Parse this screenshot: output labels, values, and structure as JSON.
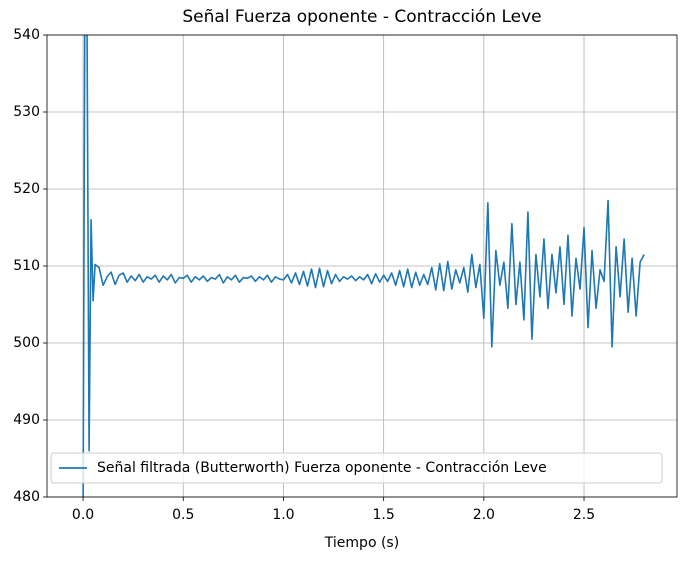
{
  "chart_data": {
    "type": "line",
    "title": "Señal Fuerza oponente - Contracción Leve",
    "x_label": "Tiempo (s)",
    "xlim": [
      -0.18,
      2.964
    ],
    "xticks": [
      {
        "value": 0,
        "label": "0.0"
      },
      0.5,
      {
        "value": 1,
        "label": "1.0"
      },
      1.5,
      {
        "value": 2,
        "label": "2.0"
      },
      2.5
    ],
    "ylim": [
      480,
      540
    ],
    "yticks": [
      480,
      490,
      500,
      510,
      520,
      530,
      540
    ],
    "grid": true,
    "legend": "lower left",
    "x": [
      0,
      0.01,
      0.02,
      0.03,
      0.04,
      0.05,
      0.06,
      0.08,
      0.1,
      0.12,
      0.14,
      0.16,
      0.18,
      0.2,
      0.22,
      0.24,
      0.26,
      0.28,
      0.3,
      0.32,
      0.34,
      0.36,
      0.38,
      0.4,
      0.42,
      0.44,
      0.46,
      0.48,
      0.5,
      0.52,
      0.54,
      0.56,
      0.58,
      0.6,
      0.62,
      0.64,
      0.66,
      0.68,
      0.7,
      0.72,
      0.74,
      0.76,
      0.78,
      0.8,
      0.82,
      0.84,
      0.86,
      0.88,
      0.9,
      0.92,
      0.94,
      0.96,
      0.98,
      1.0,
      1.02,
      1.04,
      1.06,
      1.08,
      1.1,
      1.12,
      1.14,
      1.16,
      1.18,
      1.2,
      1.22,
      1.24,
      1.26,
      1.28,
      1.3,
      1.32,
      1.34,
      1.36,
      1.38,
      1.4,
      1.42,
      1.44,
      1.46,
      1.48,
      1.5,
      1.52,
      1.54,
      1.56,
      1.58,
      1.6,
      1.62,
      1.64,
      1.66,
      1.68,
      1.7,
      1.72,
      1.74,
      1.76,
      1.78,
      1.8,
      1.82,
      1.84,
      1.86,
      1.88,
      1.9,
      1.92,
      1.94,
      1.96,
      1.98,
      2.0,
      2.02,
      2.04,
      2.06,
      2.08,
      2.1,
      2.12,
      2.14,
      2.16,
      2.18,
      2.2,
      2.22,
      2.24,
      2.26,
      2.28,
      2.3,
      2.32,
      2.34,
      2.36,
      2.38,
      2.4,
      2.42,
      2.44,
      2.46,
      2.48,
      2.5,
      2.52,
      2.54,
      2.56,
      2.58,
      2.6,
      2.62,
      2.64,
      2.66,
      2.68,
      2.7,
      2.72,
      2.74,
      2.76,
      2.78,
      2.8
    ],
    "series": [
      {
        "name": "Señal filtrada (Butterworth) Fuerza oponente - Contracción Leve",
        "color": "#1f77b4",
        "values": [
          478,
          552,
          540,
          486,
          516,
          505.5,
          510.2,
          509.8,
          507.5,
          508.6,
          509.2,
          507.6,
          508.8,
          509.1,
          507.9,
          508.7,
          508.1,
          508.9,
          507.9,
          508.6,
          508.3,
          508.8,
          507.9,
          508.7,
          508.2,
          508.9,
          507.8,
          508.5,
          508.4,
          508.8,
          507.9,
          508.6,
          508.2,
          508.7,
          508.0,
          508.5,
          508.3,
          508.9,
          507.8,
          508.6,
          508.2,
          508.8,
          507.9,
          508.5,
          508.4,
          508.7,
          508.0,
          508.6,
          508.2,
          508.8,
          507.9,
          508.6,
          508.3,
          508.2,
          508.9,
          507.8,
          509.1,
          507.6,
          509.3,
          507.4,
          509.6,
          507.2,
          509.7,
          507.3,
          509.4,
          507.7,
          508.9,
          508.0,
          508.6,
          508.3,
          508.7,
          508.1,
          508.6,
          508.2,
          508.9,
          507.7,
          509.0,
          507.9,
          508.8,
          508.0,
          509.1,
          507.5,
          509.4,
          507.3,
          509.6,
          507.2,
          509.2,
          507.5,
          508.9,
          507.6,
          509.8,
          506.9,
          510.3,
          506.8,
          510.6,
          507.0,
          509.5,
          507.8,
          509.8,
          506.6,
          511.5,
          507.2,
          510.2,
          503.2,
          518.2,
          499.5,
          512.0,
          507.5,
          510.5,
          504.5,
          515.5,
          505.0,
          510.5,
          503.0,
          517.0,
          500.5,
          511.5,
          506.0,
          513.5,
          504.5,
          511.5,
          506.5,
          512.5,
          505.0,
          514.0,
          503.5,
          511.0,
          507.0,
          515.0,
          502.0,
          512.0,
          504.5,
          509.5,
          508.0,
          518.5,
          499.5,
          512.5,
          506.0,
          513.5,
          504.0,
          511.0,
          503.5,
          510.5,
          511.5
        ]
      }
    ]
  }
}
